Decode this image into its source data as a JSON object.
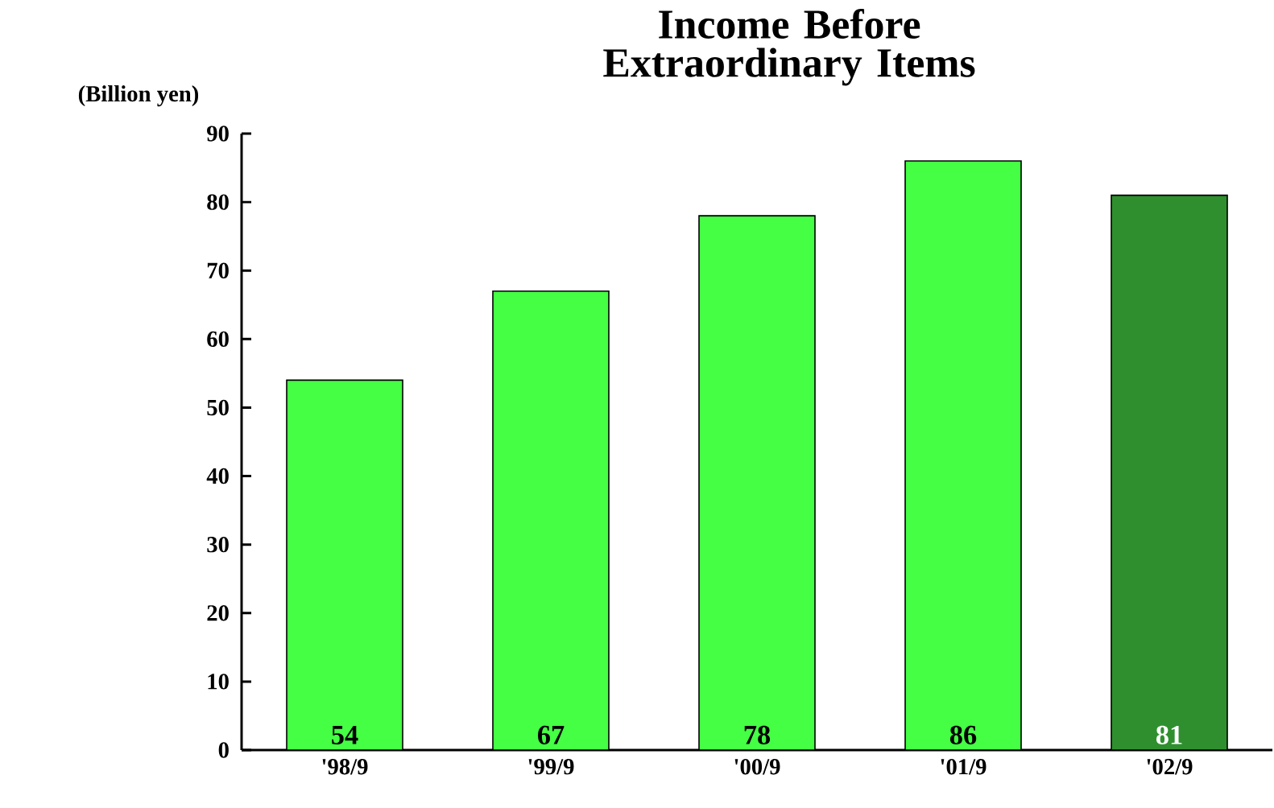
{
  "chart_data": {
    "type": "bar",
    "title": "Income Before Extraordinary Items",
    "ylabel": "(Billion yen)",
    "categories": [
      "'98/9",
      "'99/9",
      "'00/9",
      "'01/9",
      "'02/9"
    ],
    "values": [
      54,
      67,
      78,
      86,
      81
    ],
    "colors": [
      "#44ff44",
      "#44ff44",
      "#44ff44",
      "#44ff44",
      "#2f8f2f"
    ],
    "ylim": [
      0,
      90
    ],
    "yticks": [
      0,
      10,
      20,
      30,
      40,
      50,
      60,
      70,
      80,
      90
    ],
    "data_labels": true,
    "grid": false
  }
}
